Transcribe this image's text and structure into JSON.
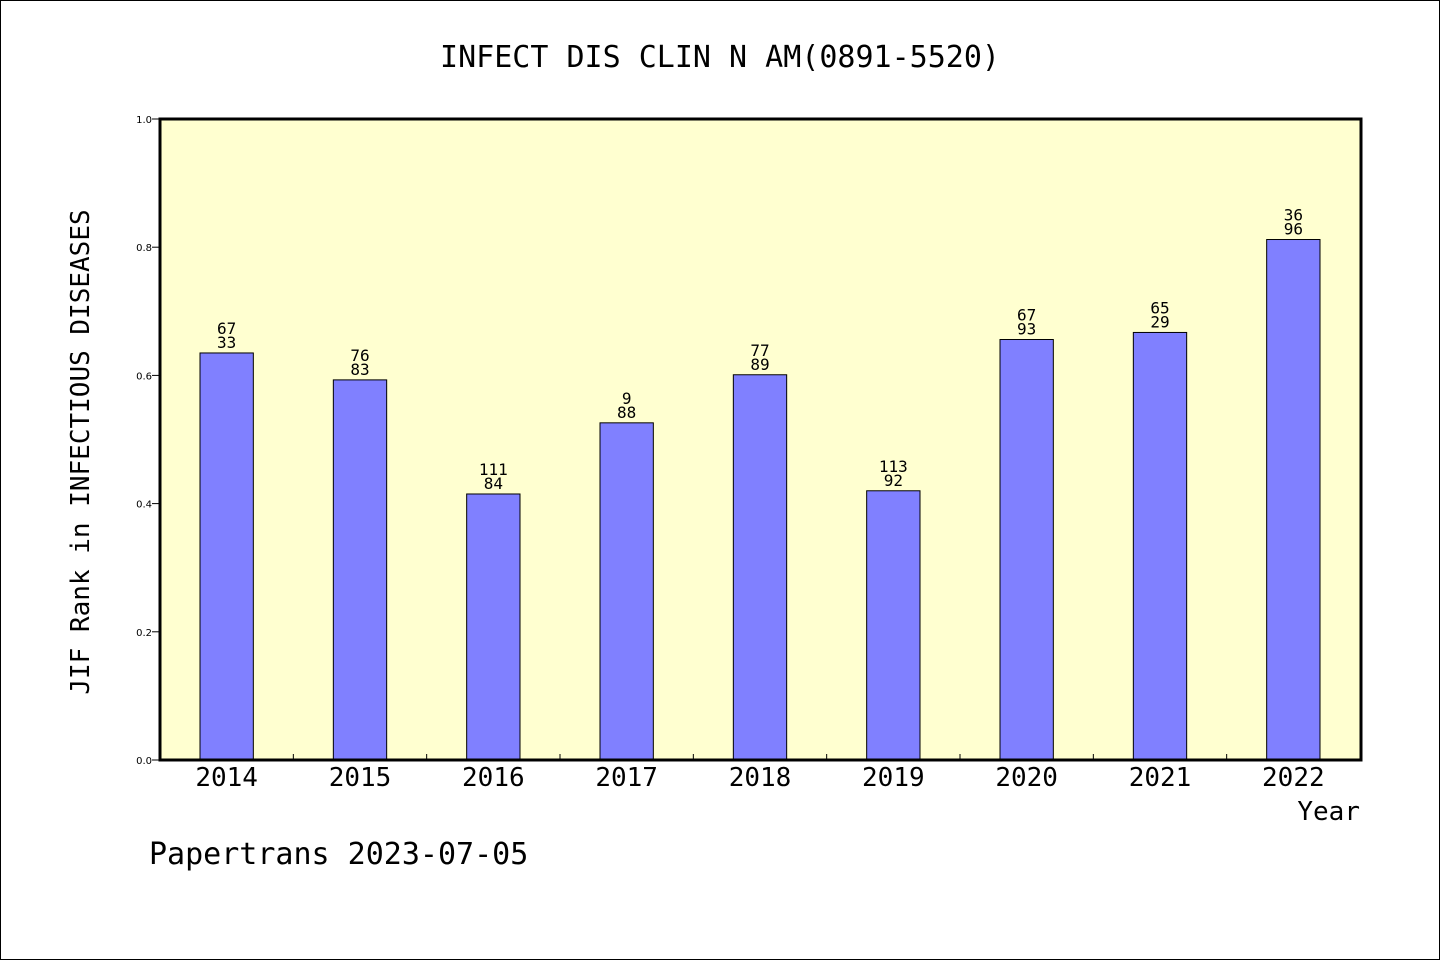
{
  "chart_data": {
    "type": "bar",
    "title": "INFECT DIS CLIN N AM(0891-5520)",
    "xlabel": "Year",
    "ylabel": "JIF Rank in INFECTIOUS DISEASES",
    "ylim": [
      0,
      1.0
    ],
    "yticks": [
      "0.0",
      "0.2",
      "0.4",
      "0.6",
      "0.8",
      "1.0"
    ],
    "categories": [
      "2014",
      "2015",
      "2016",
      "2017",
      "2018",
      "2019",
      "2020",
      "2021",
      "2022"
    ],
    "values": [
      0.635,
      0.593,
      0.415,
      0.526,
      0.601,
      0.42,
      0.656,
      0.667,
      0.812
    ],
    "rank_labels": [
      "67",
      "76",
      "111",
      "9",
      "77",
      "113",
      "67",
      "65",
      "36"
    ],
    "total_labels": [
      "33",
      "83",
      "84",
      "88",
      "89",
      "92",
      "93",
      "29",
      "96"
    ],
    "grid": false,
    "legend": "none",
    "colors": {
      "bar_fill": "#8080ff",
      "bar_stroke": "#000000",
      "plot_background": "#ffffd0",
      "axes": "#000000"
    }
  },
  "footer": {
    "text": "Papertrans 2023-07-05"
  }
}
